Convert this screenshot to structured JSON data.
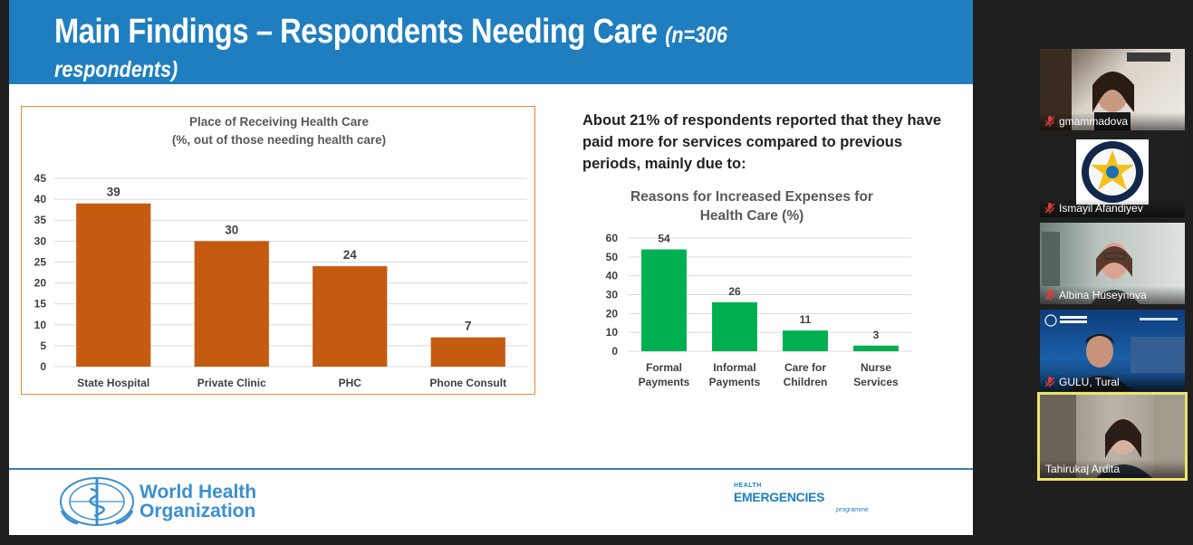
{
  "slide": {
    "title_main": "Main Findings – Respondents Needing Care",
    "title_sub_1": "(n=306",
    "title_sub_2": "respondents)",
    "note": "About 21% of respondents reported that they have paid more for services compared to previous periods, mainly due to:",
    "chart1_title_line1": "Place of Receiving Health Care",
    "chart1_title_line2": "(%, out of those needing health care)",
    "chart2_title_line1": "Reasons for Increased Expenses for",
    "chart2_title_line2": "Health Care (%)",
    "footer": {
      "who_line1": "World Health",
      "who_line2": "Organization",
      "he_small": "HEALTH",
      "he_big": "EMERGENCIES",
      "he_programme": "programme"
    }
  },
  "chart_data": [
    {
      "type": "bar",
      "title": "Place of Receiving Health Care (%, out of those needing health care)",
      "categories": [
        "State Hospital",
        "Private Clinic",
        "PHC",
        "Phone Consult"
      ],
      "values": [
        39,
        30,
        24,
        7
      ],
      "ylim": [
        0,
        45
      ],
      "yticks": [
        0,
        5,
        10,
        15,
        20,
        25,
        30,
        35,
        40,
        45
      ],
      "grid": true,
      "bar_color": "#c55a11"
    },
    {
      "type": "bar",
      "title": "Reasons for Increased Expenses for Health Care (%)",
      "categories": [
        [
          "Formal",
          "Payments"
        ],
        [
          "Informal",
          "Payments"
        ],
        [
          "Care for",
          "Children"
        ],
        [
          "Nurse",
          "Services"
        ]
      ],
      "values": [
        54,
        26,
        11,
        3
      ],
      "ylim": [
        0,
        60
      ],
      "yticks": [
        0,
        10,
        20,
        30,
        40,
        50,
        60
      ],
      "grid": true,
      "bar_color": "#00b050"
    }
  ],
  "participants": [
    {
      "name": "gmammadova"
    },
    {
      "name": "Ismayil Afandiyev"
    },
    {
      "name": "Albina Huseynova"
    },
    {
      "name": "GULU, Tural"
    },
    {
      "name": "Tahirukaj Ardita"
    }
  ],
  "colors": {
    "header_blue": "#1f7ebf",
    "bar_orange": "#c55a11",
    "bar_green": "#00b050",
    "active_speaker": "#e9e56d",
    "mic_muted": "#e03b3b"
  },
  "icons": [
    "who-emblem-icon",
    "mic-muted-icon"
  ]
}
